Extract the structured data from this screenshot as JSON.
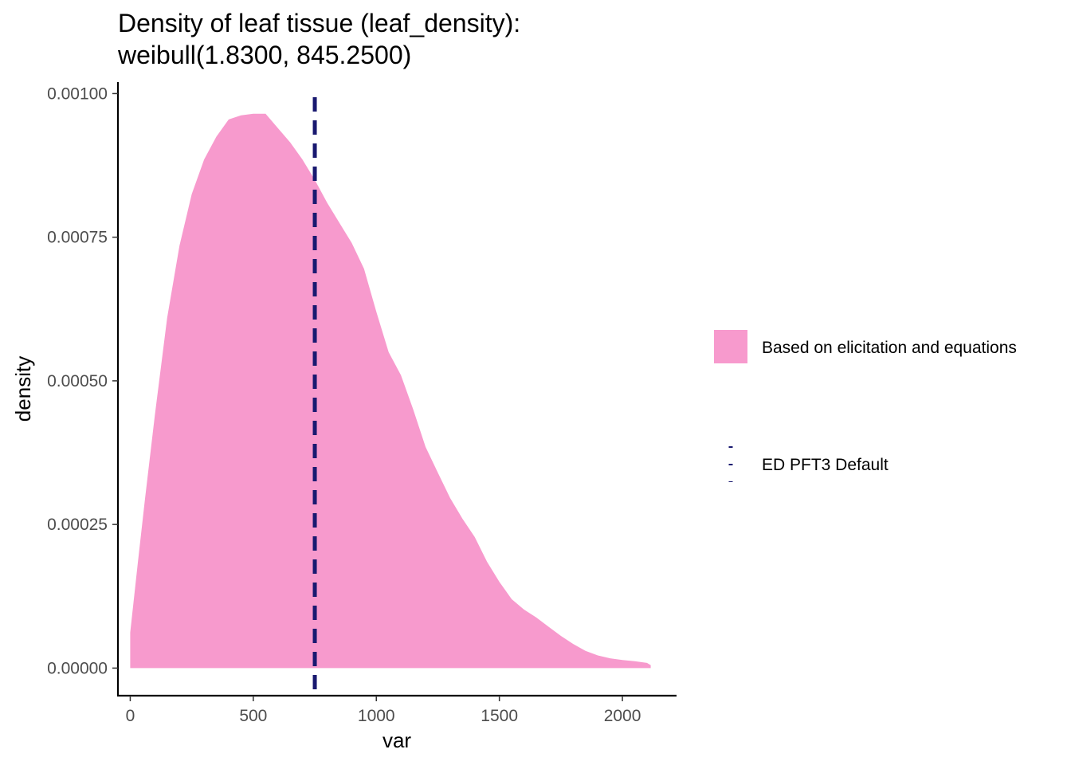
{
  "chart_data": {
    "type": "area",
    "title_lines": [
      "Density of leaf tissue (leaf_density):",
      "weibull(1.8300, 845.2500)"
    ],
    "xlabel": "var",
    "ylabel": "density",
    "xlim": [
      -50,
      2220
    ],
    "ylim": [
      -4.8e-05,
      0.00102
    ],
    "x_ticks": [
      0,
      500,
      1000,
      1500,
      2000
    ],
    "x_tick_labels": [
      "0",
      "500",
      "1000",
      "1500",
      "2000"
    ],
    "y_ticks": [
      0,
      0.00025,
      0.0005,
      0.00075,
      0.001
    ],
    "y_tick_labels": [
      "0.00000",
      "0.00025",
      "0.00050",
      "0.00075",
      "0.00100"
    ],
    "grid": false,
    "legend_position": "right",
    "series": [
      {
        "name": "Based on elicitation and equations",
        "kind": "density-area",
        "color": "#f79acd",
        "x": [
          0,
          30,
          60,
          100,
          150,
          200,
          250,
          300,
          350,
          400,
          450,
          500,
          550,
          600,
          650,
          700,
          750,
          800,
          850,
          900,
          950,
          1000,
          1050,
          1100,
          1150,
          1200,
          1250,
          1300,
          1350,
          1400,
          1450,
          1500,
          1550,
          1600,
          1650,
          1700,
          1750,
          1800,
          1850,
          1900,
          1950,
          2000,
          2050,
          2100,
          2115
        ],
        "y": [
          6.2e-05,
          0.00018,
          0.000295,
          0.00044,
          0.00061,
          0.000735,
          0.000825,
          0.000885,
          0.000925,
          0.000955,
          0.000962,
          0.000965,
          0.000965,
          0.00094,
          0.000915,
          0.000885,
          0.00085,
          0.00081,
          0.000775,
          0.00074,
          0.000695,
          0.00062,
          0.00055,
          0.00051,
          0.00045,
          0.000385,
          0.00034,
          0.000296,
          0.00026,
          0.000228,
          0.000185,
          0.00015,
          0.00012,
          0.000102,
          8.8e-05,
          7.2e-05,
          5.6e-05,
          4.2e-05,
          3e-05,
          2.2e-05,
          1.7e-05,
          1.4e-05,
          1.2e-05,
          9e-06,
          5e-06
        ]
      },
      {
        "name": "ED PFT3 Default",
        "kind": "vline",
        "color": "#191970",
        "x_value": 750
      }
    ]
  }
}
